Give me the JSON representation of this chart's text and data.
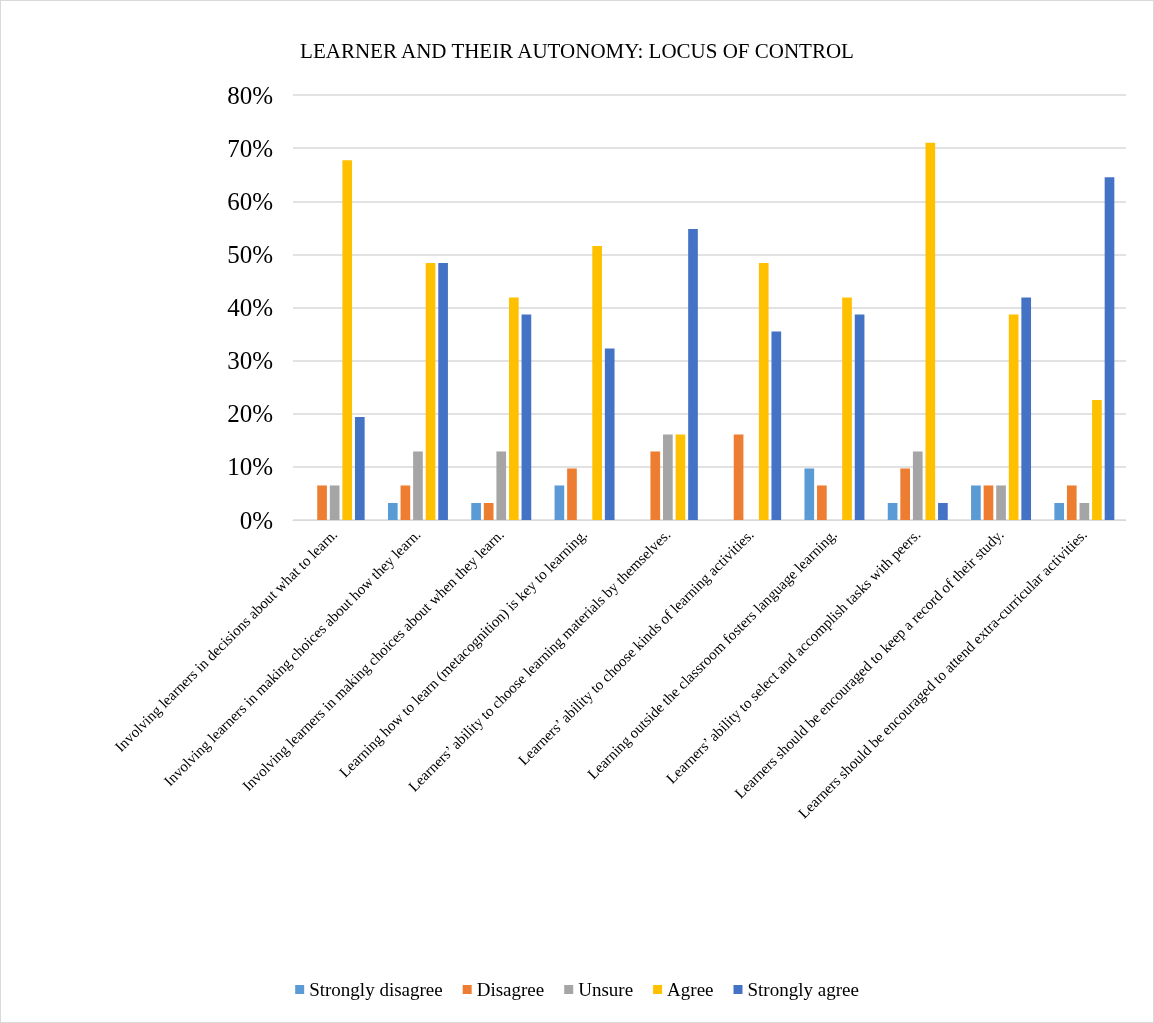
{
  "chart_data": {
    "type": "bar",
    "title": "LEARNER AND THEIR AUTONOMY: LOCUS OF CONTROL",
    "categories": [
      "Involving learners in decisions about what to learn.",
      "Involving learners in making choices about how they learn.",
      "Involving learners in making choices about when they learn.",
      "Learning how to learn (metacognition) is key to learning.",
      "Learners’ ability to choose learning materials by themselves.",
      "Learners’ ability to choose kinds of learning activities.",
      "Learning outside the classroom fosters language learning.",
      "Learners’ ability to select and accomplish tasks with peers.",
      "Learners should be encouraged to keep a record of their study.",
      "Learners should be encouraged to attend extra-curricular activities."
    ],
    "series": [
      {
        "name": "Strongly disagree",
        "color": "#5b9bd5",
        "values": [
          0,
          3.2,
          3.2,
          6.5,
          0,
          0,
          9.7,
          3.2,
          6.5,
          3.2
        ]
      },
      {
        "name": "Disagree",
        "color": "#ed7d31",
        "values": [
          6.5,
          6.5,
          3.2,
          9.7,
          12.9,
          16.1,
          6.5,
          9.7,
          6.5,
          6.5
        ]
      },
      {
        "name": "Unsure",
        "color": "#a5a5a5",
        "values": [
          6.5,
          12.9,
          12.9,
          0,
          16.1,
          0,
          0,
          12.9,
          6.5,
          3.2
        ]
      },
      {
        "name": "Agree",
        "color": "#ffc000",
        "values": [
          67.7,
          48.4,
          41.9,
          51.6,
          16.1,
          48.4,
          41.9,
          71.0,
          38.7,
          22.6
        ]
      },
      {
        "name": "Strongly agree",
        "color": "#4472c4",
        "values": [
          19.4,
          48.4,
          38.7,
          32.3,
          54.8,
          35.5,
          38.7,
          3.2,
          41.9,
          64.5
        ]
      }
    ],
    "ylim": [
      0,
      80
    ],
    "yticks": [
      {
        "value": 0,
        "label": "0%"
      },
      {
        "value": 10,
        "label": "10%"
      },
      {
        "value": 20,
        "label": "20%"
      },
      {
        "value": 30,
        "label": "30%"
      },
      {
        "value": 40,
        "label": "40%"
      },
      {
        "value": 50,
        "label": "50%"
      },
      {
        "value": 60,
        "label": "60%"
      },
      {
        "value": 70,
        "label": "70%"
      },
      {
        "value": 80,
        "label": "80%"
      }
    ],
    "grid": "y",
    "legend": "bottom"
  }
}
